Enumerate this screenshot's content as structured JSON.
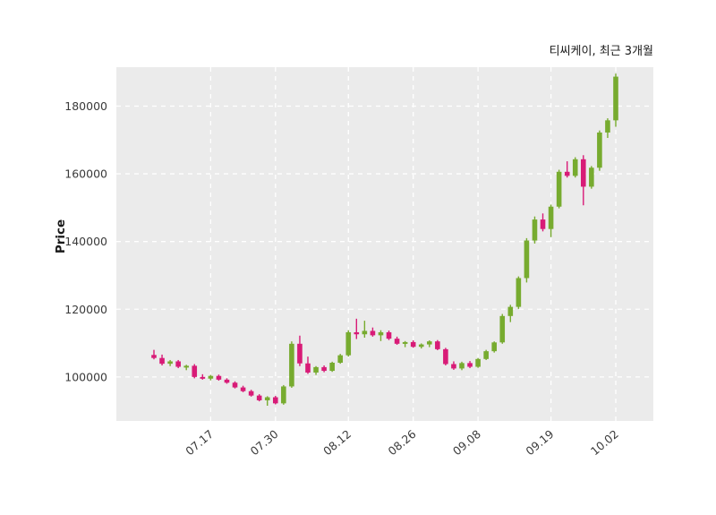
{
  "title": "티씨케이, 최근 3개월",
  "colors": {
    "up": "#77ab2f",
    "down": "#d81b77",
    "plot_bg": "#ebebeb",
    "grid": "#ffffff",
    "text": "#3a3a3a",
    "title_text": "#1a1a1a"
  },
  "chart_data": {
    "type": "candlestick",
    "title": "티씨케이, 최근 3개월",
    "ylabel": "Price",
    "ylim": [
      87000,
      191500
    ],
    "y_ticks": [
      100000,
      120000,
      140000,
      160000,
      180000
    ],
    "x_tick_labels": [
      "07.17",
      "07.30",
      "08.12",
      "08.26",
      "09.08",
      "09.19",
      "10.02"
    ],
    "x_tick_indices": [
      7,
      15,
      24,
      32,
      40,
      49,
      57
    ],
    "grid": "dashed-white",
    "legend": "none",
    "candles": [
      [
        106500,
        108000,
        105200,
        105600
      ],
      [
        105600,
        106600,
        103400,
        103900
      ],
      [
        103900,
        105000,
        103200,
        104600
      ],
      [
        104600,
        105000,
        102600,
        103000
      ],
      [
        103000,
        103600,
        102000,
        103300
      ],
      [
        103300,
        103800,
        99600,
        100000
      ],
      [
        100000,
        100800,
        99200,
        99500
      ],
      [
        99500,
        100600,
        99000,
        100300
      ],
      [
        100300,
        100700,
        98900,
        99200
      ],
      [
        99200,
        99600,
        98000,
        98300
      ],
      [
        98300,
        98700,
        96600,
        96900
      ],
      [
        96900,
        97400,
        95500,
        95800
      ],
      [
        95800,
        96200,
        94200,
        94500
      ],
      [
        94500,
        94900,
        92800,
        93100
      ],
      [
        93100,
        94300,
        91500,
        94000
      ],
      [
        94000,
        94400,
        91900,
        92200
      ],
      [
        92200,
        97600,
        91800,
        97200
      ],
      [
        97200,
        110500,
        96800,
        109800
      ],
      [
        109800,
        112200,
        103200,
        104000
      ],
      [
        104000,
        106000,
        100900,
        101300
      ],
      [
        101300,
        103200,
        100600,
        102900
      ],
      [
        102900,
        103400,
        101400,
        101800
      ],
      [
        101800,
        104500,
        101500,
        104200
      ],
      [
        104200,
        106800,
        103900,
        106400
      ],
      [
        106400,
        113800,
        106000,
        113200
      ],
      [
        113200,
        117200,
        111200,
        112600
      ],
      [
        112600,
        116600,
        111600,
        113600
      ],
      [
        113600,
        114600,
        111900,
        112300
      ],
      [
        112300,
        113800,
        110600,
        113200
      ],
      [
        113200,
        113700,
        110900,
        111300
      ],
      [
        111300,
        111900,
        109500,
        109800
      ],
      [
        109800,
        110600,
        108800,
        110300
      ],
      [
        110300,
        110800,
        108600,
        108900
      ],
      [
        108900,
        109900,
        108400,
        109600
      ],
      [
        109600,
        110800,
        108800,
        110500
      ],
      [
        110500,
        110900,
        107900,
        108200
      ],
      [
        108200,
        108600,
        103400,
        103800
      ],
      [
        103800,
        104600,
        102100,
        102500
      ],
      [
        102500,
        104500,
        102000,
        104100
      ],
      [
        104100,
        104700,
        102600,
        103000
      ],
      [
        103000,
        105600,
        102700,
        105300
      ],
      [
        105300,
        108000,
        105000,
        107600
      ],
      [
        107600,
        110500,
        107200,
        110200
      ],
      [
        110200,
        118600,
        109800,
        118000
      ],
      [
        118000,
        121300,
        116200,
        120700
      ],
      [
        120700,
        129700,
        120100,
        129200
      ],
      [
        129200,
        141000,
        127900,
        140300
      ],
      [
        140300,
        147400,
        139400,
        146500
      ],
      [
        146500,
        148300,
        143000,
        143700
      ],
      [
        143700,
        150900,
        141300,
        150300
      ],
      [
        150300,
        161200,
        149800,
        160600
      ],
      [
        160600,
        163700,
        158900,
        159400
      ],
      [
        159400,
        164900,
        158900,
        164300
      ],
      [
        164300,
        165500,
        150700,
        156200
      ],
      [
        156200,
        162300,
        155600,
        161800
      ],
      [
        161800,
        172800,
        160900,
        172200
      ],
      [
        172200,
        176400,
        170600,
        175800
      ],
      [
        175800,
        189600,
        173900,
        188700
      ]
    ]
  }
}
